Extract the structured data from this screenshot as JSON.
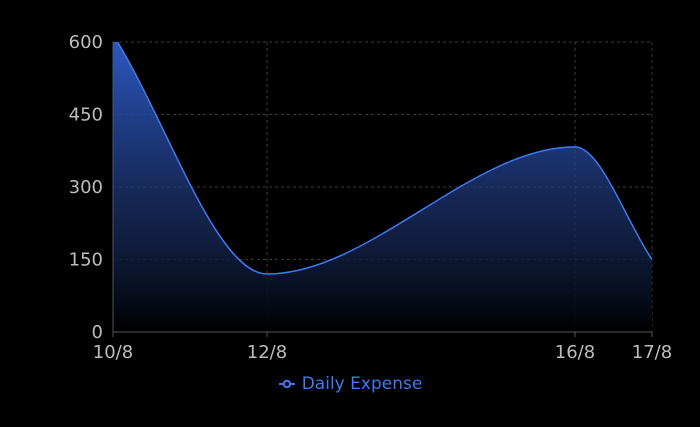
{
  "chart_data": {
    "type": "area",
    "title": "",
    "xlabel": "",
    "ylabel": "",
    "categories": [
      "10/8",
      "12/8",
      "16/8",
      "17/8"
    ],
    "x_positions": [
      10,
      12,
      16,
      17
    ],
    "series": [
      {
        "name": "Daily Expense",
        "values": [
          615,
          120,
          383,
          150
        ]
      }
    ],
    "ylim": [
      0,
      600
    ],
    "yticks": [
      "0",
      "150",
      "300",
      "450",
      "600"
    ],
    "ytick_values": [
      0,
      150,
      300,
      450,
      600
    ],
    "grid": true,
    "legend_position": "bottom-center"
  },
  "colors": {
    "line": "#3f79f4",
    "fill_top": "#2f5fd0",
    "grid": "#3a3a3a",
    "axis": "#555555",
    "text": "#bdbdbd",
    "legend": "#3f79f4",
    "background": "#000000"
  },
  "legend": {
    "label": "Daily Expense",
    "icon": "line-with-circle-icon"
  }
}
